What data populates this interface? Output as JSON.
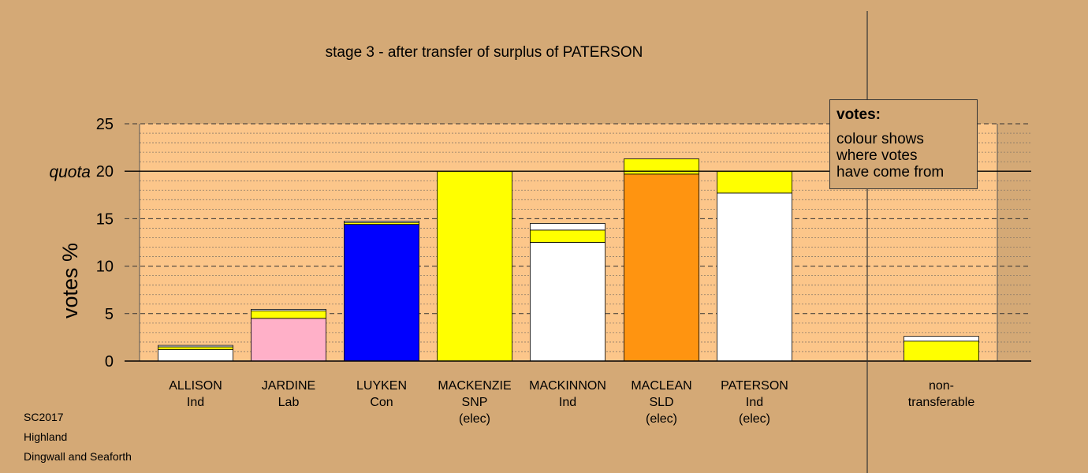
{
  "chart_data": {
    "type": "bar",
    "stacked": true,
    "title": "stage 3 - after transfer of surplus of PATERSON",
    "ylabel": "votes %",
    "ylim": [
      0,
      25
    ],
    "yticks": [
      0,
      5,
      10,
      15,
      20,
      25
    ],
    "quota": {
      "label": "quota",
      "value": 20
    },
    "categories": [
      {
        "name": "ALLISON",
        "party": "Ind",
        "status": ""
      },
      {
        "name": "JARDINE",
        "party": "Lab",
        "status": ""
      },
      {
        "name": "LUYKEN",
        "party": "Con",
        "status": ""
      },
      {
        "name": "MACKENZIE",
        "party": "SNP",
        "status": "(elec)"
      },
      {
        "name": "MACKINNON",
        "party": "Ind",
        "status": ""
      },
      {
        "name": "MACLEAN",
        "party": "SLD",
        "status": "(elec)"
      },
      {
        "name": "PATERSON",
        "party": "Ind",
        "status": "(elec)"
      }
    ],
    "stacks": [
      [
        {
          "value": 1.2,
          "color": "#ffffff"
        },
        {
          "value": 0.3,
          "color": "#ffff00"
        },
        {
          "value": 0.15,
          "color": "#ffffff"
        }
      ],
      [
        {
          "value": 4.5,
          "color": "#ffb0c8"
        },
        {
          "value": 0.8,
          "color": "#ffff00"
        },
        {
          "value": 0.15,
          "color": "#ffffff"
        }
      ],
      [
        {
          "value": 14.4,
          "color": "#0000ff"
        },
        {
          "value": 0.2,
          "color": "#ffff00"
        },
        {
          "value": 0.15,
          "color": "#ffffff"
        }
      ],
      [
        {
          "value": 20.0,
          "color": "#ffff00"
        }
      ],
      [
        {
          "value": 12.5,
          "color": "#ffffff"
        },
        {
          "value": 1.3,
          "color": "#ffff00"
        },
        {
          "value": 0.7,
          "color": "#ffffff"
        }
      ],
      [
        {
          "value": 19.7,
          "color": "#ff9410"
        },
        {
          "value": 1.6,
          "color": "#ffff00"
        }
      ],
      [
        {
          "value": 17.7,
          "color": "#ffffff"
        },
        {
          "value": 2.3,
          "color": "#ffff00"
        }
      ]
    ],
    "non_transferable": {
      "label_lines": [
        "non-",
        "transferable"
      ],
      "stack": [
        {
          "value": 2.1,
          "color": "#ffff00"
        },
        {
          "value": 0.5,
          "color": "#ffffff"
        }
      ]
    },
    "colors": {
      "background": "#d4a976",
      "plot_background": "#fcc68a"
    }
  },
  "legend": {
    "title": "votes:",
    "lines": [
      "colour shows",
      "where votes",
      "have come from"
    ]
  },
  "footer": {
    "code": "SC2017",
    "region": "Highland",
    "ward": "Dingwall and Seaforth"
  }
}
